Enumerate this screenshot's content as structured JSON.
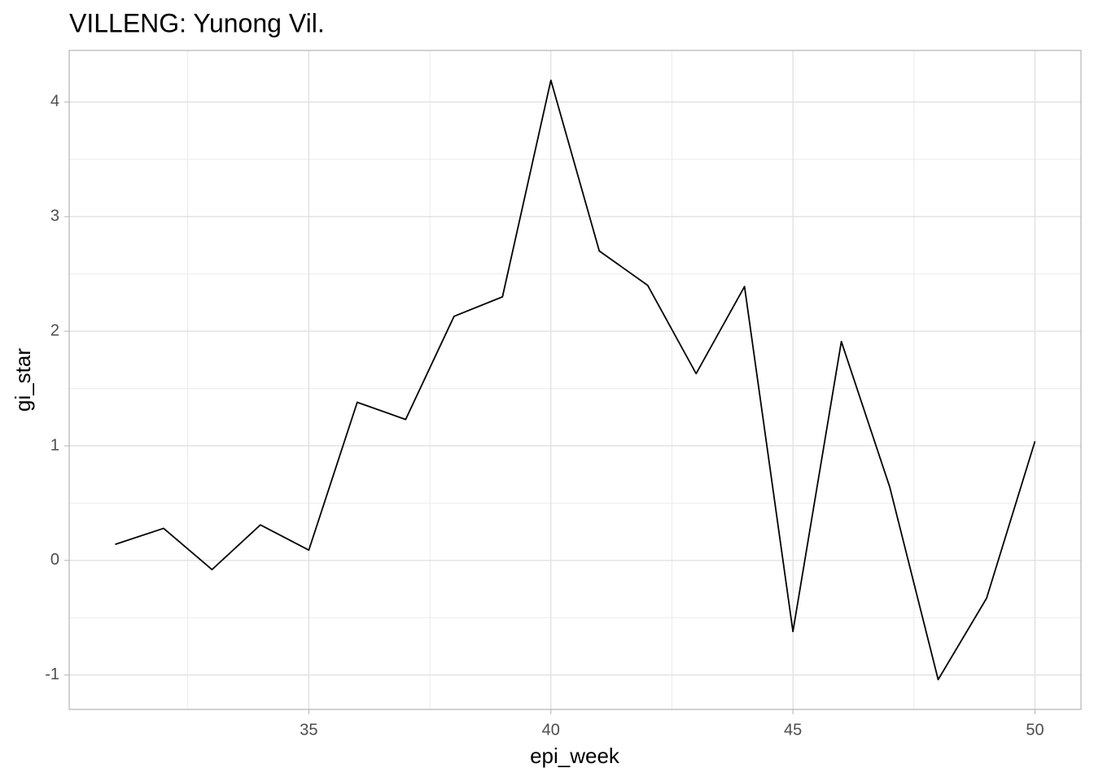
{
  "chart_data": {
    "type": "line",
    "title": "VILLENG: Yunong Vil.",
    "x_label": "epi_week",
    "y_label": "gi_star",
    "x": [
      31,
      32,
      33,
      34,
      35,
      36,
      37,
      38,
      39,
      40,
      41,
      42,
      43,
      44,
      45,
      46,
      47,
      48,
      49,
      50
    ],
    "series": [
      {
        "name": "gi_star",
        "color": "#000000",
        "values": [
          0.14,
          0.28,
          -0.08,
          0.31,
          0.09,
          1.38,
          1.23,
          2.13,
          2.3,
          4.19,
          2.7,
          2.4,
          1.63,
          2.39,
          -0.62,
          1.91,
          0.64,
          -1.04,
          -0.33,
          1.04
        ]
      }
    ],
    "xlim": [
      30.05,
      50.95
    ],
    "ylim": [
      -1.3,
      4.45
    ],
    "xticks": [
      35,
      40,
      45,
      50
    ],
    "yticks": [
      -1,
      0,
      1,
      2,
      3,
      4
    ],
    "minor_xticks": [
      32.5,
      37.5,
      42.5,
      47.5
    ],
    "minor_yticks": [
      -0.5,
      0.5,
      1.5,
      2.5,
      3.5
    ],
    "grid": true
  }
}
